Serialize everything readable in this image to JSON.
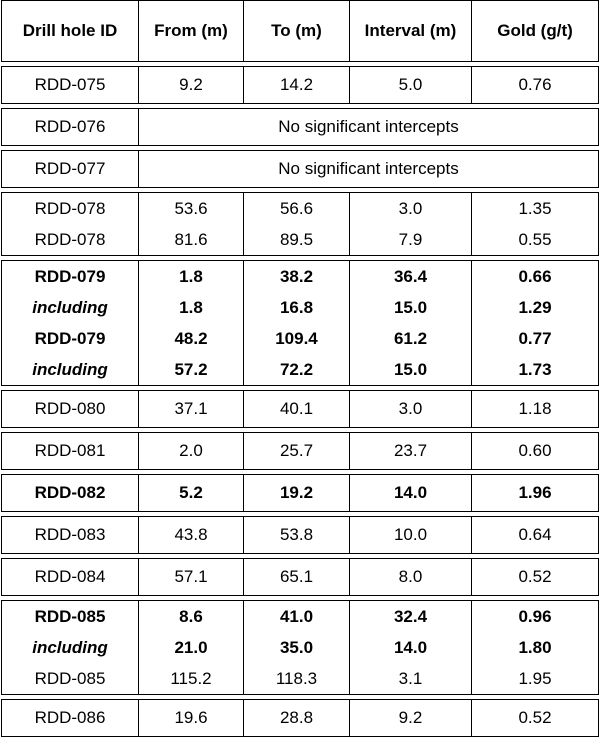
{
  "table": {
    "header": [
      "Drill hole ID",
      "From (m)",
      "To (m)",
      "Interval (m)",
      "Gold (g/t)"
    ],
    "groups": [
      {
        "rows": [
          {
            "cells": [
              "RDD-075",
              "9.2",
              "14.2",
              "5.0",
              "0.76"
            ]
          }
        ]
      },
      {
        "rows": [
          {
            "cells": [
              "RDD-076"
            ],
            "note": "No significant intercepts"
          }
        ]
      },
      {
        "rows": [
          {
            "cells": [
              "RDD-077"
            ],
            "note": "No significant intercepts"
          }
        ]
      },
      {
        "rows": [
          {
            "cells": [
              "RDD-078",
              "53.6",
              "56.6",
              "3.0",
              "1.35"
            ]
          },
          {
            "cells": [
              "RDD-078",
              "81.6",
              "89.5",
              "7.9",
              "0.55"
            ]
          }
        ]
      },
      {
        "bold": true,
        "rows": [
          {
            "cells": [
              "RDD-079",
              "1.8",
              "38.2",
              "36.4",
              "0.66"
            ]
          },
          {
            "cells": [
              "including",
              "1.8",
              "16.8",
              "15.0",
              "1.29"
            ],
            "italic_label": true
          },
          {
            "cells": [
              "RDD-079",
              "48.2",
              "109.4",
              "61.2",
              "0.77"
            ]
          },
          {
            "cells": [
              "including",
              "57.2",
              "72.2",
              "15.0",
              "1.73"
            ],
            "italic_label": true
          }
        ]
      },
      {
        "rows": [
          {
            "cells": [
              "RDD-080",
              "37.1",
              "40.1",
              "3.0",
              "1.18"
            ]
          }
        ]
      },
      {
        "rows": [
          {
            "cells": [
              "RDD-081",
              "2.0",
              "25.7",
              "23.7",
              "0.60"
            ]
          }
        ]
      },
      {
        "bold": true,
        "rows": [
          {
            "cells": [
              "RDD-082",
              "5.2",
              "19.2",
              "14.0",
              "1.96"
            ]
          }
        ]
      },
      {
        "rows": [
          {
            "cells": [
              "RDD-083",
              "43.8",
              "53.8",
              "10.0",
              "0.64"
            ]
          }
        ]
      },
      {
        "rows": [
          {
            "cells": [
              "RDD-084",
              "57.1",
              "65.1",
              "8.0",
              "0.52"
            ]
          }
        ]
      },
      {
        "rows": [
          {
            "cells": [
              "RDD-085",
              "8.6",
              "41.0",
              "32.4",
              "0.96"
            ],
            "bold": true
          },
          {
            "cells": [
              "including",
              "21.0",
              "35.0",
              "14.0",
              "1.80"
            ],
            "bold": true,
            "italic_label": true
          },
          {
            "cells": [
              "RDD-085",
              "115.2",
              "118.3",
              "3.1",
              "1.95"
            ]
          }
        ]
      },
      {
        "rows": [
          {
            "cells": [
              "RDD-086",
              "19.6",
              "28.8",
              "9.2",
              "0.52"
            ]
          }
        ]
      }
    ]
  }
}
